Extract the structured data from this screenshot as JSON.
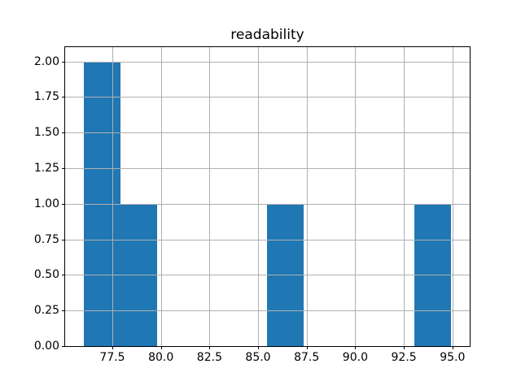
{
  "figure": {
    "background": "#ffffff"
  },
  "chart_data": {
    "type": "bar",
    "chart_kind": "histogram",
    "title": "readability",
    "xlabel": "",
    "ylabel": "",
    "grid": true,
    "legend": null,
    "xlim": [
      75.07,
      95.89
    ],
    "ylim": [
      0,
      2.1
    ],
    "bar_color": "#1f77b4",
    "grid_color": "#b0b0b0",
    "spine_color": "#000000",
    "bin_edges": [
      76.02,
      77.91,
      79.8,
      81.69,
      83.58,
      85.47,
      87.36,
      89.25,
      91.14,
      93.03,
      94.92
    ],
    "counts": [
      2,
      1,
      0,
      0,
      0,
      1,
      0,
      0,
      0,
      1
    ],
    "x_ticks": [
      {
        "value": 77.5,
        "label": "77.5"
      },
      {
        "value": 80.0,
        "label": "80.0"
      },
      {
        "value": 82.5,
        "label": "82.5"
      },
      {
        "value": 85.0,
        "label": "85.0"
      },
      {
        "value": 87.5,
        "label": "87.5"
      },
      {
        "value": 90.0,
        "label": "90.0"
      },
      {
        "value": 92.5,
        "label": "92.5"
      },
      {
        "value": 95.0,
        "label": "95.0"
      }
    ],
    "y_ticks": [
      {
        "value": 0.0,
        "label": "0.00"
      },
      {
        "value": 0.25,
        "label": "0.25"
      },
      {
        "value": 0.5,
        "label": "0.50"
      },
      {
        "value": 0.75,
        "label": "0.75"
      },
      {
        "value": 1.0,
        "label": "1.00"
      },
      {
        "value": 1.25,
        "label": "1.25"
      },
      {
        "value": 1.5,
        "label": "1.50"
      },
      {
        "value": 1.75,
        "label": "1.75"
      },
      {
        "value": 2.0,
        "label": "2.00"
      }
    ]
  }
}
